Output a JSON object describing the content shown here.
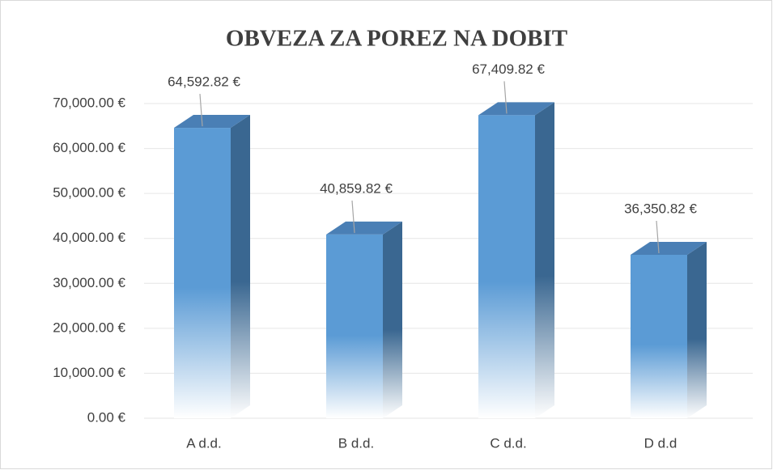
{
  "chart_data": {
    "type": "bar3d",
    "title": "OBVEZA ZA POREZ NA DOBIT",
    "categories": [
      "A d.d.",
      "B d.d.",
      "C d.d.",
      "D d.d"
    ],
    "values": [
      64592.82,
      40859.82,
      67409.82,
      36350.82
    ],
    "value_labels": [
      "64,592.82 €",
      "40,859.82 €",
      "67,409.82 €",
      "36,350.82 €"
    ],
    "color": "#5b9bd5",
    "ylim": [
      0,
      70000
    ],
    "yticks": [
      {
        "value": 0,
        "label": "0.00 €"
      },
      {
        "value": 10000,
        "label": "10,000.00 €"
      },
      {
        "value": 20000,
        "label": "20,000.00 €"
      },
      {
        "value": 30000,
        "label": "30,000.00 €"
      },
      {
        "value": 40000,
        "label": "40,000.00 €"
      },
      {
        "value": 50000,
        "label": "50,000.00 €"
      },
      {
        "value": 60000,
        "label": "60,000.00 €"
      },
      {
        "value": 70000,
        "label": "70,000.00 €"
      }
    ],
    "grid": true
  }
}
